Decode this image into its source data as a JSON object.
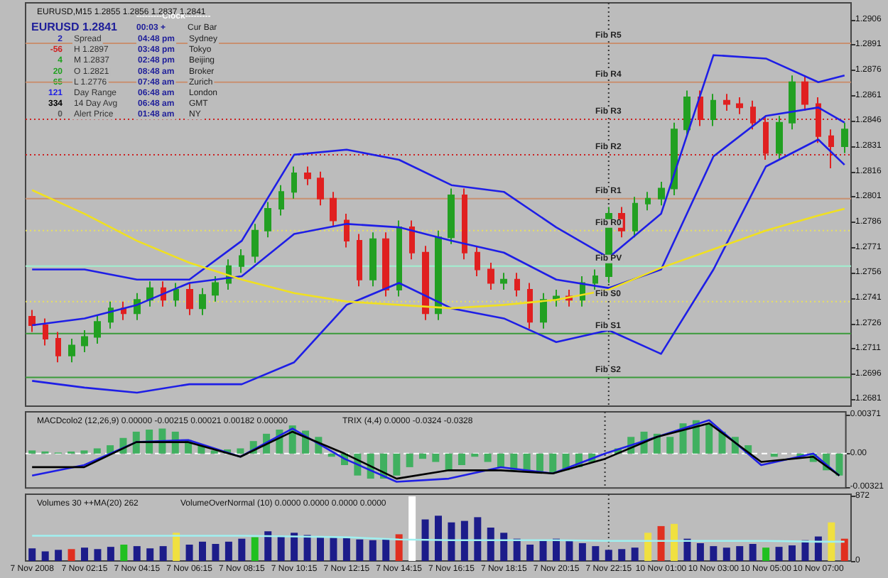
{
  "chart_data": [
    {
      "type": "candlestick",
      "title": "EURUSD,M15 1.2855 1.2856 1.2837 1.2841",
      "annotations": [
        "EURUSD 1.2841",
        "---------Clock---------",
        "00:03 +",
        "Cur Bar",
        "2",
        "Spread",
        "04:48 pm",
        "Sydney",
        "-56",
        "H 1.2897",
        "03:48 pm",
        "Tokyo",
        "4",
        "M 1.2837",
        "02:48 pm",
        "Beijing",
        "20",
        "O 1.2821",
        "08:48 am",
        "Broker",
        "65",
        "L 1.2776",
        "07:48 am",
        "Zurich",
        "121",
        "Day Range",
        "06:48 am",
        "London",
        "334",
        "14 Day Avg",
        "06:48 am",
        "GMT",
        "0",
        "Alert Price",
        "01:48 am",
        "NY"
      ],
      "categories": [
        "7 Nov 2008",
        null,
        null,
        null,
        "7 Nov 02:15",
        null,
        null,
        null,
        "7 Nov 04:15",
        null,
        null,
        null,
        "7 Nov 06:15",
        null,
        null,
        null,
        "7 Nov 08:15",
        null,
        null,
        null,
        "7 Nov 10:15",
        null,
        null,
        null,
        "7 Nov 12:15",
        null,
        null,
        null,
        "7 Nov 14:15",
        null,
        null,
        null,
        "7 Nov 16:15",
        null,
        null,
        null,
        "7 Nov 18:15",
        null,
        null,
        null,
        "7 Nov 20:15",
        null,
        null,
        null,
        "7 Nov 22:15",
        null,
        null,
        null,
        "10 Nov 01:00",
        null,
        null,
        null,
        "10 Nov 03:00",
        null,
        null,
        null,
        "10 Nov 05:00",
        null,
        null,
        null,
        "10 Nov 07:00",
        null,
        null
      ],
      "ohlc": [
        [
          1.273,
          1.2734,
          1.2721,
          1.2725
        ],
        [
          1.2725,
          1.2729,
          1.2713,
          1.2717
        ],
        [
          1.2717,
          1.2721,
          1.2703,
          1.2707
        ],
        [
          1.2707,
          1.2717,
          1.2703,
          1.2713
        ],
        [
          1.2713,
          1.2722,
          1.2709,
          1.2718
        ],
        [
          1.2718,
          1.2731,
          1.2714,
          1.2727
        ],
        [
          1.2727,
          1.2739,
          1.2723,
          1.2735
        ],
        [
          1.2735,
          1.2739,
          1.2728,
          1.2732
        ],
        [
          1.2732,
          1.2744,
          1.2728,
          1.274
        ],
        [
          1.274,
          1.2751,
          1.2736,
          1.2747
        ],
        [
          1.2747,
          1.2751,
          1.2736,
          1.274
        ],
        [
          1.274,
          1.275,
          1.2736,
          1.2746
        ],
        [
          1.2746,
          1.275,
          1.2731,
          1.2735
        ],
        [
          1.2735,
          1.2747,
          1.2731,
          1.2743
        ],
        [
          1.2743,
          1.2754,
          1.2739,
          1.275
        ],
        [
          1.275,
          1.2764,
          1.2746,
          1.276
        ],
        [
          1.276,
          1.277,
          1.2756,
          1.2766
        ],
        [
          1.2766,
          1.2785,
          1.2762,
          1.2781
        ],
        [
          1.2781,
          1.2798,
          1.2777,
          1.2794
        ],
        [
          1.2794,
          1.2808,
          1.279,
          1.2804
        ],
        [
          1.2804,
          1.2819,
          1.28,
          1.2815
        ],
        [
          1.2815,
          1.2819,
          1.2808,
          1.2812
        ],
        [
          1.2812,
          1.2816,
          1.2796,
          1.28
        ],
        [
          1.28,
          1.2804,
          1.2783,
          1.2787
        ],
        [
          1.2787,
          1.2791,
          1.2771,
          1.2775
        ],
        [
          1.2775,
          1.2779,
          1.2748,
          1.2752
        ],
        [
          1.2752,
          1.278,
          1.2748,
          1.2776
        ],
        [
          1.2776,
          1.278,
          1.2742,
          1.2746
        ],
        [
          1.2746,
          1.2787,
          1.2742,
          1.2783
        ],
        [
          1.2783,
          1.2787,
          1.2764,
          1.2768
        ],
        [
          1.2768,
          1.2772,
          1.2728,
          1.2732
        ],
        [
          1.2732,
          1.2781,
          1.2728,
          1.2777
        ],
        [
          1.2777,
          1.2806,
          1.2773,
          1.2802
        ],
        [
          1.2802,
          1.2806,
          1.2764,
          1.2768
        ],
        [
          1.2768,
          1.2772,
          1.2754,
          1.2758
        ],
        [
          1.2758,
          1.2762,
          1.2746,
          1.275
        ],
        [
          1.275,
          1.2756,
          1.2746,
          1.2752
        ],
        [
          1.2752,
          1.2756,
          1.2742,
          1.2746
        ],
        [
          1.2746,
          1.275,
          1.2723,
          1.2727
        ],
        [
          1.2727,
          1.2744,
          1.2723,
          1.274
        ],
        [
          1.274,
          1.2746,
          1.2736,
          1.2742
        ],
        [
          1.2742,
          1.2746,
          1.2736,
          1.274
        ],
        [
          1.274,
          1.2754,
          1.2736,
          1.275
        ],
        [
          1.275,
          1.2758,
          1.2746,
          1.2754
        ],
        [
          1.2754,
          1.2795,
          1.275,
          1.2791
        ],
        [
          1.2791,
          1.2795,
          1.2777,
          1.2781
        ],
        [
          1.2781,
          1.2801,
          1.2777,
          1.2797
        ],
        [
          1.2797,
          1.2804,
          1.2793,
          1.28
        ],
        [
          1.28,
          1.281,
          1.2796,
          1.2806
        ],
        [
          1.2806,
          1.2845,
          1.2802,
          1.2841
        ],
        [
          1.2841,
          1.2864,
          1.2837,
          1.286
        ],
        [
          1.286,
          1.2864,
          1.2843,
          1.2847
        ],
        [
          1.2847,
          1.2862,
          1.2843,
          1.2858
        ],
        [
          1.2858,
          1.2862,
          1.2852,
          1.2856
        ],
        [
          1.2856,
          1.286,
          1.285,
          1.2854
        ],
        [
          1.2854,
          1.2858,
          1.2841,
          1.2845
        ],
        [
          1.2845,
          1.2849,
          1.2823,
          1.2827
        ],
        [
          1.2827,
          1.2849,
          1.2823,
          1.2845
        ],
        [
          1.2845,
          1.2873,
          1.2841,
          1.2869
        ],
        [
          1.2869,
          1.2873,
          1.2852,
          1.2856
        ],
        [
          1.2856,
          1.286,
          1.2833,
          1.2837
        ],
        [
          1.2837,
          1.2841,
          1.2818,
          1.2831
        ],
        [
          1.2831,
          1.2845,
          1.2827,
          1.2841
        ]
      ],
      "series": [
        {
          "type": "line",
          "color": "#1e1ee6",
          "values": [
            1.2758,
            null,
            null,
            null,
            1.2758,
            null,
            null,
            null,
            1.2752,
            null,
            null,
            null,
            1.2752,
            null,
            null,
            null,
            1.2775,
            null,
            null,
            null,
            1.2826,
            null,
            null,
            null,
            1.2829,
            null,
            null,
            null,
            1.2823,
            null,
            null,
            null,
            1.2808,
            null,
            null,
            null,
            1.2804,
            null,
            null,
            null,
            1.2783,
            null,
            null,
            null,
            1.2765,
            null,
            null,
            null,
            1.2791,
            null,
            null,
            null,
            1.2885,
            null,
            null,
            null,
            1.2883,
            null,
            null,
            null,
            1.2869,
            null,
            1.2873
          ]
        },
        {
          "type": "line",
          "color": "#1e1ee6",
          "values": [
            1.2725,
            null,
            null,
            null,
            1.2729,
            null,
            null,
            null,
            1.2737,
            null,
            null,
            null,
            1.275,
            null,
            null,
            null,
            1.2754,
            null,
            null,
            null,
            1.2779,
            null,
            null,
            null,
            1.2785,
            null,
            null,
            null,
            1.2783,
            null,
            null,
            null,
            1.2775,
            null,
            null,
            null,
            1.2768,
            null,
            null,
            null,
            1.2752,
            null,
            null,
            null,
            1.2747,
            null,
            null,
            null,
            1.2758,
            null,
            null,
            null,
            1.2825,
            null,
            null,
            null,
            1.2849,
            null,
            null,
            null,
            1.2854,
            null,
            1.2845
          ]
        },
        {
          "type": "line",
          "color": "#1e1ee6",
          "values": [
            1.2692,
            null,
            null,
            null,
            1.2688,
            null,
            null,
            null,
            1.2685,
            null,
            null,
            null,
            1.269,
            null,
            null,
            null,
            1.269,
            null,
            null,
            null,
            1.2703,
            null,
            null,
            null,
            1.2737,
            null,
            null,
            null,
            1.275,
            null,
            null,
            null,
            1.2735,
            null,
            null,
            null,
            1.2729,
            null,
            null,
            null,
            1.2715,
            null,
            null,
            null,
            1.2722,
            null,
            null,
            null,
            1.2708,
            null,
            null,
            null,
            1.2758,
            null,
            null,
            null,
            1.2819,
            null,
            null,
            null,
            1.2835,
            null,
            1.282
          ]
        },
        {
          "type": "line",
          "color": "#f0e020",
          "values": [
            1.2805,
            null,
            null,
            null,
            1.2791,
            null,
            null,
            null,
            1.2775,
            null,
            null,
            null,
            1.2762,
            null,
            null,
            null,
            1.2752,
            null,
            null,
            null,
            1.2744,
            null,
            null,
            null,
            1.2739,
            null,
            null,
            null,
            1.2737,
            null,
            null,
            null,
            1.2735,
            null,
            null,
            null,
            1.2737,
            null,
            null,
            null,
            1.274,
            null,
            null,
            null,
            1.2746,
            null,
            null,
            null,
            1.2759,
            null,
            null,
            null,
            1.277,
            null,
            null,
            null,
            1.2781,
            null,
            null,
            null,
            1.279,
            null,
            1.2794
          ]
        }
      ],
      "ref_lines": [
        {
          "axis": "y",
          "value": 1.2892,
          "label": "Fib R5",
          "color": "#c89070"
        },
        {
          "axis": "y",
          "value": 1.2869,
          "label": "Fib R4",
          "color": "#c89070"
        },
        {
          "axis": "y",
          "value": 1.2847,
          "label": "Fib R3",
          "color": "#cc2222",
          "line_style": "dotted"
        },
        {
          "axis": "y",
          "value": 1.2826,
          "label": "Fib R2",
          "color": "#cc2222",
          "line_style": "dotted"
        },
        {
          "axis": "y",
          "value": 1.28,
          "label": "Fib R1",
          "color": "#c89070"
        },
        {
          "axis": "y",
          "value": 1.2781,
          "label": "Fib R0",
          "color": "#e8e060",
          "line_style": "dotted"
        },
        {
          "axis": "y",
          "value": 1.276,
          "label": "Fib PV",
          "color": "#a0f0d0"
        },
        {
          "axis": "y",
          "value": 1.2739,
          "label": "Fib S0",
          "color": "#e8e060",
          "line_style": "dotted"
        },
        {
          "axis": "y",
          "value": 1.272,
          "label": "Fib S1",
          "color": "#3a9a3a"
        },
        {
          "axis": "y",
          "value": 1.2694,
          "label": "Fib S2",
          "color": "#3a9a3a"
        },
        {
          "axis": "x",
          "value": "7 Nov 22:15",
          "color": "#333333",
          "line_style": "dotted"
        }
      ],
      "ylim": [
        1.2677,
        1.2916
      ],
      "yticks": [
        1.2681,
        1.2696,
        1.2711,
        1.2726,
        1.2741,
        1.2756,
        1.2771,
        1.2786,
        1.2801,
        1.2816,
        1.2831,
        1.2846,
        1.2861,
        1.2876,
        1.2891,
        1.2906
      ],
      "tick_labels": "y",
      "grid": false
    },
    {
      "type": "bar",
      "title": "MACDcolo2 (12,26,9) 0.00000 -0.00215 0.00021 0.00182 0.00000",
      "subtitle": "TRIX (4,4) 0.0000 -0.0324 -0.0328",
      "categories": [
        "7 Nov 2008",
        null,
        null,
        null,
        "7 Nov 02:15",
        null,
        null,
        null,
        "7 Nov 04:15",
        null,
        null,
        null,
        "7 Nov 06:15",
        null,
        null,
        null,
        "7 Nov 08:15",
        null,
        null,
        null,
        "7 Nov 10:15",
        null,
        null,
        null,
        "7 Nov 12:15",
        null,
        null,
        null,
        "7 Nov 14:15",
        null,
        null,
        null,
        "7 Nov 16:15",
        null,
        null,
        null,
        "7 Nov 18:15",
        null,
        null,
        null,
        "7 Nov 20:15",
        null,
        null,
        null,
        "7 Nov 22:15",
        null,
        null,
        null,
        "10 Nov 01:00",
        null,
        null,
        null,
        "10 Nov 03:00",
        null,
        null,
        null,
        "10 Nov 05:00",
        null,
        null,
        null,
        "10 Nov 07:00",
        null,
        null
      ],
      "series": [
        {
          "type": "bar",
          "color": "#40b060",
          "values": [
            0.0003,
            0.0002,
            0.0001,
            0.0002,
            0.0003,
            0.0005,
            0.0008,
            0.0015,
            0.0021,
            0.0023,
            0.0024,
            0.0021,
            0.0013,
            0.0008,
            0.0003,
            0.0004,
            0.0005,
            0.0012,
            0.0019,
            0.0023,
            0.0027,
            0.0022,
            0.0016,
            -0.0003,
            -0.0011,
            -0.0021,
            -0.0024,
            -0.0024,
            -0.0021,
            -0.0013,
            -0.0005,
            -0.0008,
            -0.0016,
            -0.0011,
            -0.0003,
            -0.0008,
            -0.0013,
            -0.0016,
            -0.0016,
            -0.0019,
            -0.0019,
            -0.0016,
            -0.0013,
            -0.0008,
            0,
            0.0005,
            0.0016,
            0.0021,
            0.0019,
            0.0016,
            0.0029,
            0.0032,
            0.0029,
            0.0021,
            0.0016,
            0.0008,
            0,
            -0.0003,
            0,
            -0.0003,
            -0.0008,
            -0.0016,
            -0.0021
          ]
        },
        {
          "type": "line",
          "color": "#1e1ee6",
          "values": [
            -0.0021,
            null,
            null,
            null,
            -0.0011,
            null,
            null,
            null,
            0.0011,
            null,
            null,
            null,
            0.0013,
            null,
            null,
            null,
            -0.0003,
            null,
            null,
            null,
            0.0024,
            null,
            null,
            null,
            -0.0005,
            null,
            null,
            null,
            -0.0027,
            null,
            null,
            null,
            -0.0024,
            null,
            null,
            null,
            -0.0013,
            null,
            null,
            null,
            -0.0019,
            null,
            null,
            null,
            0,
            null,
            null,
            null,
            0.0016,
            null,
            null,
            null,
            0.0032,
            null,
            null,
            null,
            -0.0011,
            null,
            null,
            null,
            0,
            null,
            -0.0021
          ]
        },
        {
          "type": "line",
          "color": "#000000",
          "values": [
            -0.0013,
            null,
            null,
            null,
            -0.0013,
            null,
            null,
            null,
            0.0011,
            null,
            null,
            null,
            0.0011,
            null,
            null,
            null,
            -0.0003,
            null,
            null,
            null,
            0.0021,
            null,
            null,
            null,
            0,
            null,
            null,
            null,
            -0.0024,
            null,
            null,
            null,
            -0.0016,
            null,
            null,
            null,
            -0.0016,
            null,
            null,
            null,
            -0.0019,
            null,
            null,
            null,
            -0.0005,
            null,
            null,
            null,
            0.0016,
            null,
            null,
            null,
            0.0029,
            null,
            null,
            null,
            -0.0008,
            null,
            null,
            null,
            -0.0003,
            null,
            -0.0021
          ]
        }
      ],
      "ref_lines": [
        {
          "axis": "y",
          "value": 0,
          "color": "#ffffff",
          "line_style": "dashed"
        },
        {
          "axis": "x",
          "value": "7 Nov 22:15",
          "color": "#333333",
          "line_style": "dotted"
        }
      ],
      "ylim": [
        -0.0033,
        0.004
      ],
      "yticks": [
        -0.00321,
        {
          "value": 0,
          "label": "0.00"
        },
        0.00371
      ],
      "tick_labels": "y",
      "grid": false
    },
    {
      "type": "bar",
      "title": "Volumes 30 ++MA(20) 262",
      "subtitle": "VolumeOverNormal (10) 0.0000 0.0000 0.0000 0.0000",
      "categories": [
        "7 Nov 2008",
        null,
        null,
        null,
        "7 Nov 02:15",
        null,
        null,
        null,
        "7 Nov 04:15",
        null,
        null,
        null,
        "7 Nov 06:15",
        null,
        null,
        null,
        "7 Nov 08:15",
        null,
        null,
        null,
        "7 Nov 10:15",
        null,
        null,
        null,
        "7 Nov 12:15",
        null,
        null,
        null,
        "7 Nov 14:15",
        null,
        null,
        null,
        "7 Nov 16:15",
        null,
        null,
        null,
        "7 Nov 18:15",
        null,
        null,
        null,
        "7 Nov 20:15",
        null,
        null,
        null,
        "7 Nov 22:15",
        null,
        null,
        null,
        "10 Nov 01:00",
        null,
        null,
        null,
        "10 Nov 03:00",
        null,
        null,
        null,
        "10 Nov 05:00",
        null,
        null,
        null,
        "10 Nov 07:00",
        null,
        null
      ],
      "series": [
        {
          "type": "bar",
          "color": "#1c1c8a",
          "values": [
            170,
            130,
            150,
            160,
            180,
            160,
            190,
            220,
            200,
            170,
            200,
            380,
            220,
            260,
            230,
            260,
            300,
            320,
            400,
            340,
            380,
            350,
            330,
            320,
            310,
            290,
            280,
            300,
            360,
            872,
            560,
            610,
            520,
            540,
            590,
            450,
            380,
            300,
            220,
            280,
            300,
            270,
            240,
            200,
            150,
            160,
            180,
            380,
            470,
            500,
            300,
            240,
            200,
            180,
            200,
            230,
            180,
            190,
            210,
            280,
            330,
            520,
            300
          ],
          "colors": [
            "#1c1c8a",
            "#1c1c8a",
            "#1c1c8a",
            "#e03020",
            "#1c1c8a",
            "#1c1c8a",
            "#1c1c8a",
            "#20c020",
            "#1c1c8a",
            "#1c1c8a",
            "#1c1c8a",
            "#f0e040",
            "#1c1c8a",
            "#1c1c8a",
            "#1c1c8a",
            "#1c1c8a",
            "#1c1c8a",
            "#20c020",
            "#1c1c8a",
            "#1c1c8a",
            "#1c1c8a",
            "#1c1c8a",
            "#1c1c8a",
            "#1c1c8a",
            "#1c1c8a",
            "#1c1c8a",
            "#1c1c8a",
            "#1c1c8a",
            "#e03020",
            "#ffffff",
            "#1c1c8a",
            "#1c1c8a",
            "#1c1c8a",
            "#1c1c8a",
            "#1c1c8a",
            "#1c1c8a",
            "#1c1c8a",
            "#1c1c8a",
            "#1c1c8a",
            "#1c1c8a",
            "#1c1c8a",
            "#1c1c8a",
            "#1c1c8a",
            "#1c1c8a",
            "#1c1c8a",
            "#1c1c8a",
            "#1c1c8a",
            "#f0e040",
            "#e03020",
            "#f0e040",
            "#1c1c8a",
            "#1c1c8a",
            "#1c1c8a",
            "#1c1c8a",
            "#1c1c8a",
            "#1c1c8a",
            "#20c020",
            "#1c1c8a",
            "#1c1c8a",
            "#1c1c8a",
            "#1c1c8a",
            "#f0e040",
            "#e03020"
          ]
        },
        {
          "type": "line",
          "color": "#a0f0f0",
          "values": [
            340,
            null,
            null,
            null,
            340,
            null,
            null,
            null,
            340,
            null,
            null,
            null,
            340,
            null,
            null,
            null,
            340,
            null,
            null,
            null,
            330,
            null,
            null,
            null,
            320,
            null,
            null,
            null,
            290,
            null,
            null,
            null,
            280,
            null,
            null,
            null,
            280,
            null,
            null,
            null,
            280,
            null,
            null,
            null,
            270,
            null,
            null,
            null,
            270,
            null,
            null,
            null,
            270,
            null,
            null,
            null,
            270,
            null,
            null,
            null,
            260,
            null,
            260
          ]
        }
      ],
      "ref_lines": [
        {
          "axis": "x",
          "value": "7 Nov 22:15",
          "color": "#333333",
          "line_style": "dotted"
        }
      ],
      "ylim": [
        0,
        900
      ],
      "yticks": [
        0,
        872
      ],
      "grid": false
    }
  ]
}
